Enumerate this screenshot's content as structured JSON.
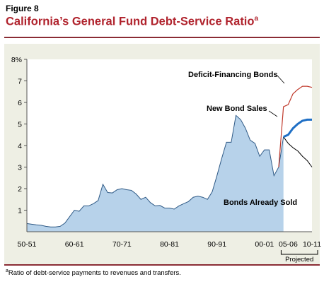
{
  "figure_label": "Figure 8",
  "title_main": "California’s General Fund Debt-Service Ratio",
  "title_note_marker": "a",
  "footnote_marker": "a",
  "footnote_text": "Ratio of debt-service payments to revenues and transfers.",
  "chart_data": {
    "type": "area",
    "title": "California’s General Fund Debt-Service Ratio",
    "ylim": [
      0,
      8
    ],
    "y_ticks": [
      1,
      2,
      3,
      4,
      5,
      6,
      7,
      8
    ],
    "y_tick_labels": [
      "1",
      "2",
      "3",
      "4",
      "5",
      "6",
      "7",
      "8%"
    ],
    "x_tick_labels": [
      "50-51",
      "60-61",
      "70-71",
      "80-81",
      "90-91",
      "00-01",
      "05-06",
      "10-11"
    ],
    "x_tick_years": [
      1950,
      1960,
      1970,
      1980,
      1990,
      2000,
      2005,
      2010
    ],
    "xlim": [
      1950,
      2010
    ],
    "projected_label": "Projected",
    "projected_range": [
      2005,
      2010
    ],
    "colors": {
      "area_fill": "#b7d2ea",
      "area_edge": "#2f5a86",
      "deficit": "#c0392b",
      "new_bonds": "#1f6fc5",
      "sold_projection": "#000000",
      "frame": "#8a2c34",
      "panel": "#eeefe4"
    },
    "series": [
      {
        "name": "Bonds Already Sold",
        "style": "area",
        "x": [
          1950,
          1951,
          1952,
          1953,
          1954,
          1955,
          1956,
          1957,
          1958,
          1959,
          1960,
          1961,
          1962,
          1963,
          1964,
          1965,
          1966,
          1967,
          1968,
          1969,
          1970,
          1971,
          1972,
          1973,
          1974,
          1975,
          1976,
          1977,
          1978,
          1979,
          1980,
          1981,
          1982,
          1983,
          1984,
          1985,
          1986,
          1987,
          1988,
          1989,
          1990,
          1991,
          1992,
          1993,
          1994,
          1995,
          1996,
          1997,
          1998,
          1999,
          2000,
          2001,
          2002,
          2003,
          2004
        ],
        "values": [
          0.38,
          0.35,
          0.32,
          0.3,
          0.25,
          0.22,
          0.22,
          0.25,
          0.4,
          0.7,
          1.0,
          0.95,
          1.2,
          1.2,
          1.3,
          1.45,
          2.2,
          1.82,
          1.8,
          1.95,
          2.0,
          1.95,
          1.92,
          1.75,
          1.5,
          1.6,
          1.35,
          1.2,
          1.22,
          1.1,
          1.1,
          1.05,
          1.2,
          1.3,
          1.4,
          1.6,
          1.65,
          1.6,
          1.5,
          1.85,
          2.6,
          3.4,
          4.15,
          4.15,
          5.4,
          5.2,
          4.8,
          4.25,
          4.1,
          3.5,
          3.8,
          3.8,
          2.6,
          3.0,
          4.4
        ]
      },
      {
        "name": "Bonds Already Sold",
        "style": "projection",
        "x": [
          2004,
          2005,
          2006,
          2007,
          2008,
          2009,
          2010
        ],
        "values": [
          4.4,
          4.1,
          3.9,
          3.75,
          3.5,
          3.3,
          3.0
        ]
      },
      {
        "name": "New Bond Sales",
        "style": "line",
        "x": [
          2004,
          2005,
          2006,
          2007,
          2008,
          2009,
          2010
        ],
        "values": [
          4.4,
          4.5,
          4.8,
          5.0,
          5.15,
          5.2,
          5.2
        ]
      },
      {
        "name": "Deficit-Financing Bonds",
        "style": "line",
        "x": [
          2003,
          2004,
          2005,
          2006,
          2007,
          2008,
          2009,
          2010
        ],
        "values": [
          3.0,
          5.8,
          5.9,
          6.4,
          6.6,
          6.75,
          6.75,
          6.7
        ]
      }
    ],
    "annotations": [
      {
        "text": "Deficit-Financing Bonds",
        "series": "Deficit-Financing Bonds"
      },
      {
        "text": "New Bond Sales",
        "series": "New Bond Sales"
      },
      {
        "text": "Bonds Already Sold",
        "series": "Bonds Already Sold"
      }
    ]
  }
}
